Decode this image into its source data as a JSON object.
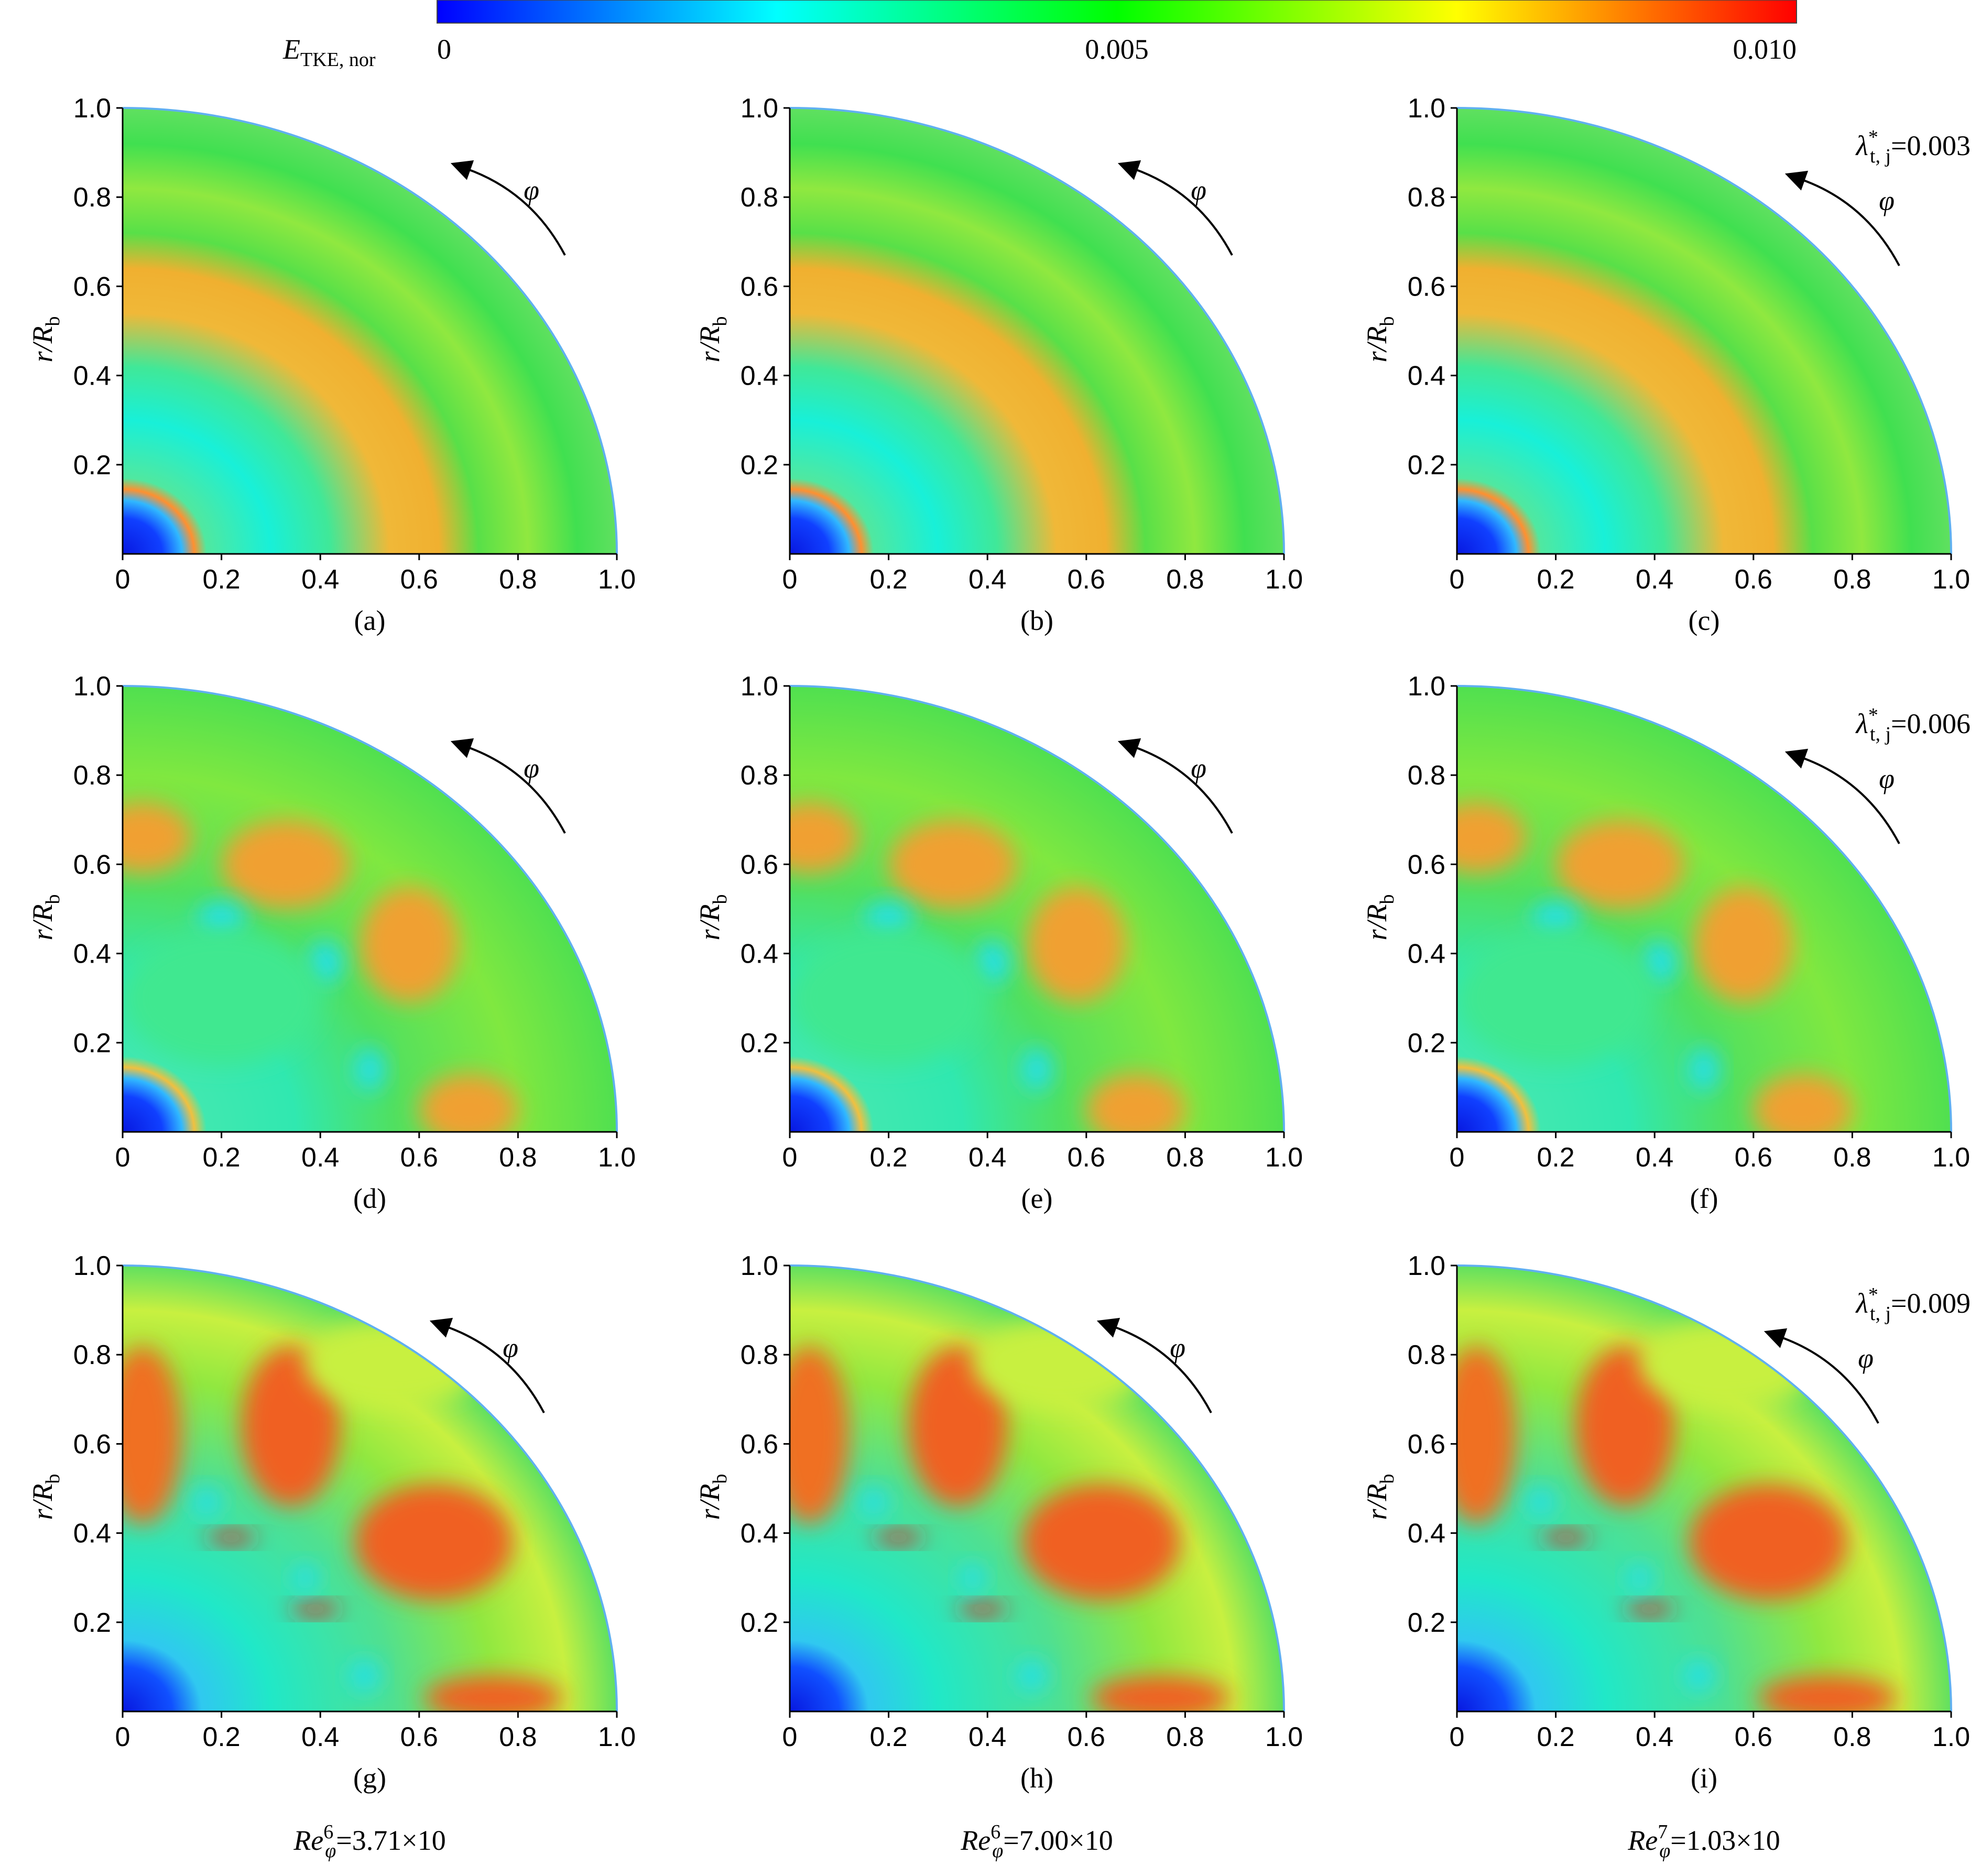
{
  "colorbar": {
    "label": {
      "base": "E",
      "sub": "TKE, nor"
    },
    "clim": [
      0,
      0.01
    ],
    "ticks": [
      0,
      0.005,
      {
        "value": 0.01,
        "label": "0.010"
      }
    ],
    "colormap": [
      "#0000ff",
      "#00ffff",
      "#00ff00",
      "#ffff00",
      "#ff0000"
    ]
  },
  "column_labels": [
    {
      "base": "Re",
      "sub": "φ",
      "text": "=3.71×10",
      "sup": "6"
    },
    {
      "base": "Re",
      "sub": "φ",
      "text": "=7.00×10",
      "sup": "6"
    },
    {
      "base": "Re",
      "sub": "φ",
      "text": "=1.03×10",
      "sup": "7"
    }
  ],
  "chart_data": [
    {
      "type": "contour",
      "caption": "(a)",
      "annotation": "φ",
      "ylabel": {
        "base": "r/R",
        "sub": "b"
      },
      "xlim": [
        0,
        1
      ],
      "ylim": [
        0,
        1
      ],
      "xticks": [
        0,
        0.2,
        0.4,
        0.6,
        0.8,
        {
          "value": 1,
          "label": "1.0"
        }
      ],
      "yticks": [
        0.2,
        0.4,
        0.6,
        0.8,
        {
          "value": 1,
          "label": "1.0"
        }
      ]
    },
    {
      "type": "contour",
      "caption": "(b)",
      "annotation": "φ",
      "ylabel": {
        "base": "r/R",
        "sub": "b"
      },
      "xlim": [
        0,
        1
      ],
      "ylim": [
        0,
        1
      ],
      "xticks": [
        0,
        0.2,
        0.4,
        0.6,
        0.8,
        {
          "value": 1,
          "label": "1.0"
        }
      ],
      "yticks": [
        0.2,
        0.4,
        0.6,
        0.8,
        {
          "value": 1,
          "label": "1.0"
        }
      ]
    },
    {
      "type": "contour",
      "caption": "(c)",
      "annotation": "φ",
      "lambda": {
        "base": "λ",
        "sup": "*",
        "sub": "t, j",
        "text": "=0.003"
      },
      "ylabel": {
        "base": "r/R",
        "sub": "b"
      },
      "xlim": [
        0,
        1
      ],
      "ylim": [
        0,
        1
      ],
      "xticks": [
        0,
        0.2,
        0.4,
        0.6,
        0.8,
        {
          "value": 1,
          "label": "1.0"
        }
      ],
      "yticks": [
        0.2,
        0.4,
        0.6,
        0.8,
        {
          "value": 1,
          "label": "1.0"
        }
      ]
    },
    {
      "type": "contour",
      "caption": "(d)",
      "annotation": "φ",
      "ylabel": {
        "base": "r/R",
        "sub": "b"
      },
      "xlim": [
        0,
        1
      ],
      "ylim": [
        0,
        1
      ],
      "xticks": [
        0,
        0.2,
        0.4,
        0.6,
        0.8,
        {
          "value": 1,
          "label": "1.0"
        }
      ],
      "yticks": [
        0.2,
        0.4,
        0.6,
        0.8,
        {
          "value": 1,
          "label": "1.0"
        }
      ]
    },
    {
      "type": "contour",
      "caption": "(e)",
      "annotation": "φ",
      "ylabel": {
        "base": "r/R",
        "sub": "b"
      },
      "xlim": [
        0,
        1
      ],
      "ylim": [
        0,
        1
      ],
      "xticks": [
        0,
        0.2,
        0.4,
        0.6,
        0.8,
        {
          "value": 1,
          "label": "1.0"
        }
      ],
      "yticks": [
        0.2,
        0.4,
        0.6,
        0.8,
        {
          "value": 1,
          "label": "1.0"
        }
      ]
    },
    {
      "type": "contour",
      "caption": "(f)",
      "annotation": "φ",
      "lambda": {
        "base": "λ",
        "sup": "*",
        "sub": "t, j",
        "text": "=0.006"
      },
      "ylabel": {
        "base": "r/R",
        "sub": "b"
      },
      "xlim": [
        0,
        1
      ],
      "ylim": [
        0,
        1
      ],
      "xticks": [
        0,
        0.2,
        0.4,
        0.6,
        0.8,
        {
          "value": 1,
          "label": "1.0"
        }
      ],
      "yticks": [
        0.2,
        0.4,
        0.6,
        0.8,
        {
          "value": 1,
          "label": "1.0"
        }
      ]
    },
    {
      "type": "contour",
      "caption": "(g)",
      "annotation": "φ",
      "ylabel": {
        "base": "r/R",
        "sub": "b"
      },
      "xlim": [
        0,
        1
      ],
      "ylim": [
        0,
        1
      ],
      "xticks": [
        0,
        0.2,
        0.4,
        0.6,
        0.8,
        {
          "value": 1,
          "label": "1.0"
        }
      ],
      "yticks": [
        0.2,
        0.4,
        0.6,
        0.8,
        {
          "value": 1,
          "label": "1.0"
        }
      ]
    },
    {
      "type": "contour",
      "caption": "(h)",
      "annotation": "φ",
      "ylabel": {
        "base": "r/R",
        "sub": "b"
      },
      "xlim": [
        0,
        1
      ],
      "ylim": [
        0,
        1
      ],
      "xticks": [
        0,
        0.2,
        0.4,
        0.6,
        0.8,
        {
          "value": 1,
          "label": "1.0"
        }
      ],
      "yticks": [
        0.2,
        0.4,
        0.6,
        0.8,
        {
          "value": 1,
          "label": "1.0"
        }
      ]
    },
    {
      "type": "contour",
      "caption": "(i)",
      "annotation": "φ",
      "lambda": {
        "base": "λ",
        "sup": "*",
        "sub": "t, j",
        "text": "=0.009"
      },
      "ylabel": {
        "base": "r/R",
        "sub": "b"
      },
      "xlim": [
        0,
        1
      ],
      "ylim": [
        0,
        1
      ],
      "xticks": [
        0,
        0.2,
        0.4,
        0.6,
        0.8,
        {
          "value": 1,
          "label": "1.0"
        }
      ],
      "yticks": [
        0.2,
        0.4,
        0.6,
        0.8,
        {
          "value": 1,
          "label": "1.0"
        }
      ]
    }
  ]
}
